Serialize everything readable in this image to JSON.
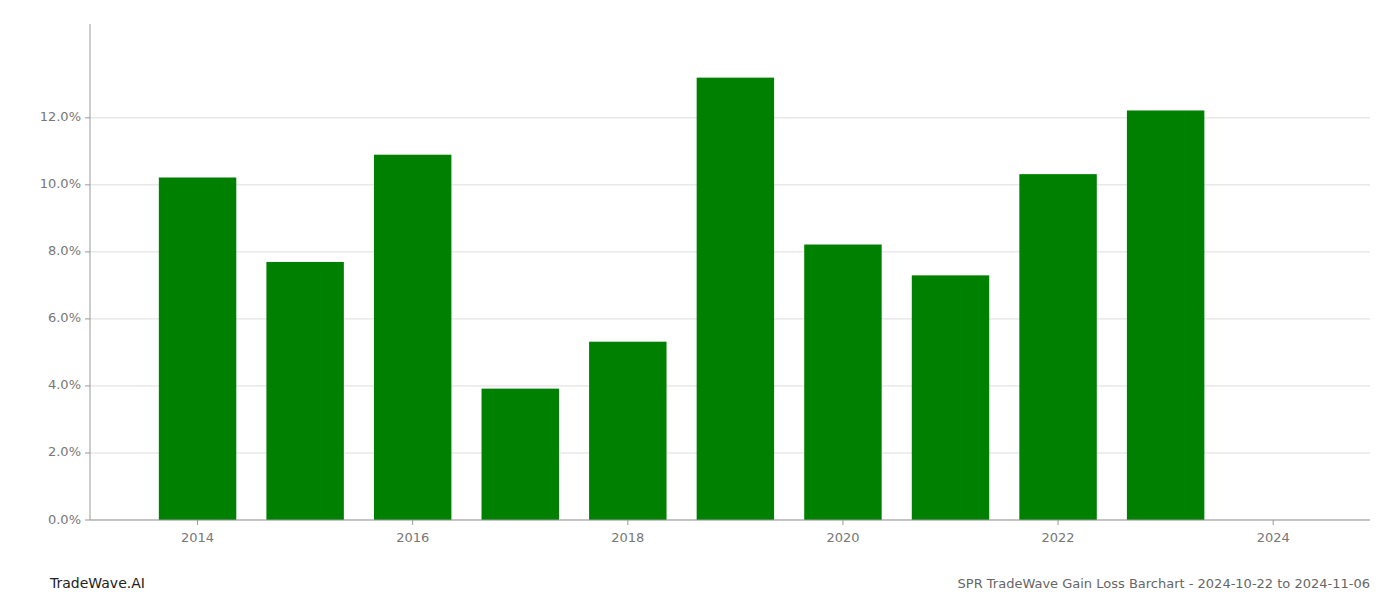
{
  "chart_data": {
    "type": "bar",
    "title": "SPR TradeWave Gain Loss Barchart - 2024-10-22 to 2024-11-06",
    "annotations": [
      "TradeWave.AI"
    ],
    "x": [
      2014,
      2015,
      2016,
      2017,
      2018,
      2019,
      2020,
      2021,
      2022,
      2023
    ],
    "values": [
      0.1022,
      0.077,
      0.109,
      0.0392,
      0.0532,
      0.132,
      0.0822,
      0.073,
      0.1032,
      0.1222
    ],
    "color": "#008000",
    "xlim": [
      2013.0,
      2024.9
    ],
    "xticks": [
      2014,
      2016,
      2018,
      2020,
      2022,
      2024
    ],
    "ylim": [
      0.0,
      0.148
    ],
    "yticks": [
      {
        "value": 0.0,
        "label": "0.0%"
      },
      {
        "value": 0.02,
        "label": "2.0%"
      },
      {
        "value": 0.04,
        "label": "4.0%"
      },
      {
        "value": 0.06,
        "label": "6.0%"
      },
      {
        "value": 0.08,
        "label": "8.0%"
      },
      {
        "value": 0.1,
        "label": "10.0%"
      },
      {
        "value": 0.12,
        "label": "12.0%"
      }
    ],
    "grid": true
  }
}
